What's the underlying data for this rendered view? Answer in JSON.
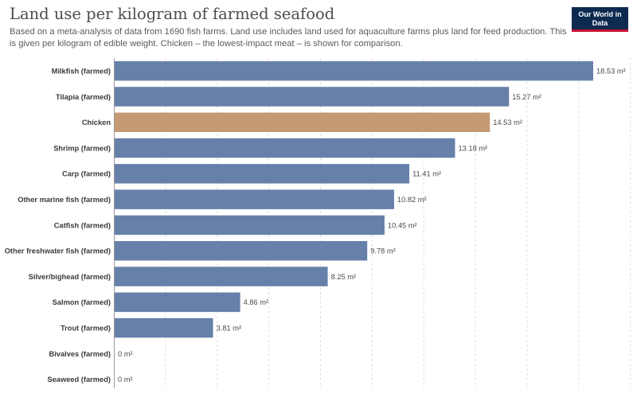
{
  "header": {
    "title": "Land use per kilogram of farmed seafood",
    "subtitle": "Based on a meta-analysis of data from 1690 fish farms. Land use includes land used for aquaculture farms plus land for feed production. This is given per kilogram of edible weight. Chicken – the lowest-impact meat – is shown for comparison.",
    "logo_text": "Our World in Data"
  },
  "colors": {
    "default_bar": "#6780aa",
    "highlight_bar": "#c49a73",
    "grid": "#dddddd",
    "axis": "#999999",
    "logo_bg": "#0d2a4f",
    "logo_accent": "#c8102e"
  },
  "chart_data": {
    "type": "bar",
    "orientation": "horizontal",
    "title": "Land use per kilogram of farmed seafood",
    "unit_suffix": " m²",
    "xlim": [
      0,
      20
    ],
    "grid": true,
    "categories": [
      "Milkfish (farmed)",
      "Tilapia (farmed)",
      "Chicken",
      "Shrimp (farmed)",
      "Carp (farmed)",
      "Other marine fish (farmed)",
      "Catfish (farmed)",
      "Other freshwater fish (farmed)",
      "Silver/bighead (farmed)",
      "Salmon (farmed)",
      "Trout (farmed)",
      "Bivalves (farmed)",
      "Seaweed (farmed)"
    ],
    "values": [
      18.53,
      15.27,
      14.53,
      13.18,
      11.41,
      10.82,
      10.45,
      9.78,
      8.25,
      4.86,
      3.81,
      0,
      0
    ],
    "value_labels": [
      "18.53 m²",
      "15.27 m²",
      "14.53 m²",
      "13.18 m²",
      "11.41 m²",
      "10.82 m²",
      "10.45 m²",
      "9.78 m²",
      "8.25 m²",
      "4.86 m²",
      "3.81 m²",
      "0 m²",
      "0 m²"
    ],
    "highlight": [
      "Chicken"
    ]
  }
}
